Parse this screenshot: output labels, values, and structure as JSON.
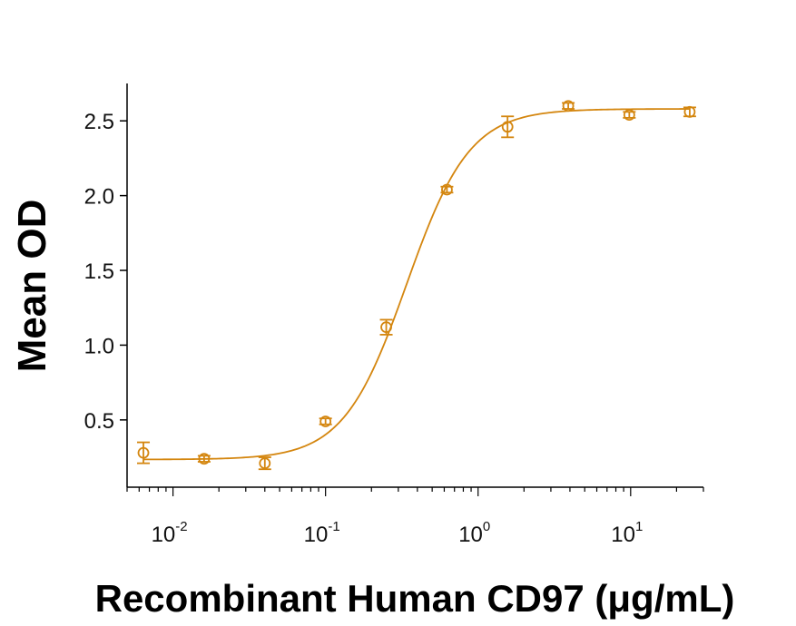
{
  "chart_data": {
    "type": "scatter",
    "xlabel": "Recombinant Human CD97 (μg/mL)",
    "ylabel": "Mean OD",
    "x_scale": "log",
    "xlim": [
      0.005,
      30
    ],
    "ylim": [
      0.05,
      2.75
    ],
    "grid": false,
    "color": "#D4860F",
    "x_ticks": [
      {
        "base": "10",
        "exp": "-2"
      },
      {
        "base": "10",
        "exp": "-1"
      },
      {
        "base": "10",
        "exp": "0"
      },
      {
        "base": "10",
        "exp": "1"
      }
    ],
    "y_ticks": [
      "0.5",
      "1.0",
      "1.5",
      "2.0",
      "2.5"
    ],
    "series": [
      {
        "points": [
          {
            "x": 0.0064,
            "y": 0.28,
            "err": 0.07
          },
          {
            "x": 0.016,
            "y": 0.24,
            "err": 0.02
          },
          {
            "x": 0.04,
            "y": 0.21,
            "err": 0.04
          },
          {
            "x": 0.1,
            "y": 0.49,
            "err": 0.02
          },
          {
            "x": 0.25,
            "y": 1.12,
            "err": 0.05
          },
          {
            "x": 0.625,
            "y": 2.04,
            "err": 0.02
          },
          {
            "x": 1.56,
            "y": 2.46,
            "err": 0.07
          },
          {
            "x": 3.9,
            "y": 2.6,
            "err": 0.02
          },
          {
            "x": 9.8,
            "y": 2.54,
            "err": 0.02
          },
          {
            "x": 24.4,
            "y": 2.56,
            "err": 0.03
          }
        ],
        "fit": {
          "bottom": 0.235,
          "top": 2.58,
          "ec50": 0.34,
          "hill": 2.1
        }
      }
    ]
  }
}
